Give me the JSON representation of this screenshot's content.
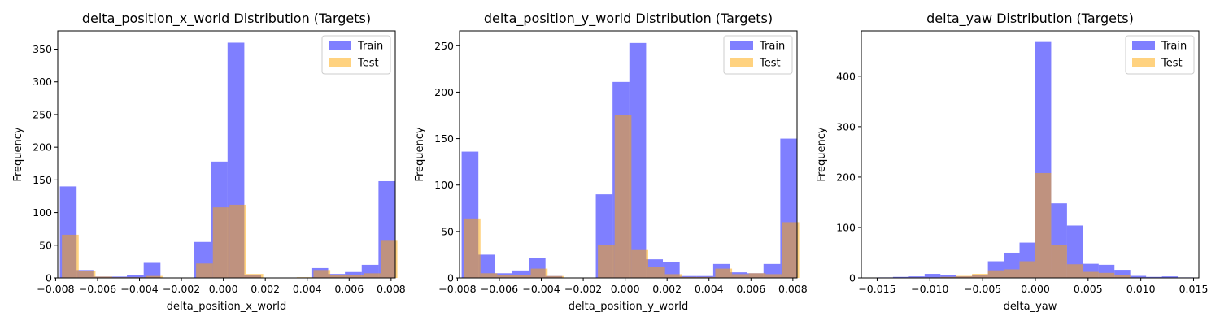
{
  "chart_data": [
    {
      "type": "bar",
      "title": "delta_position_x_world Distribution (Targets)",
      "xlabel": "delta_position_x_world",
      "ylabel": "Frequency",
      "xlim": [
        -0.0079,
        0.0082
      ],
      "ylim": [
        0,
        378
      ],
      "xticks": [
        -0.008,
        -0.006,
        -0.004,
        -0.002,
        0.0,
        0.002,
        0.004,
        0.006,
        0.008
      ],
      "xtick_labels": [
        "−0.008",
        "−0.006",
        "−0.004",
        "−0.002",
        "0.000",
        "0.002",
        "0.004",
        "0.006",
        "0.008"
      ],
      "yticks": [
        0,
        50,
        100,
        150,
        200,
        250,
        300,
        350
      ],
      "yticks_labels": [
        "0",
        "50",
        "100",
        "150",
        "200",
        "250",
        "300",
        "350"
      ],
      "legend": "top-right",
      "grid": false,
      "series": [
        {
          "name": "Train",
          "color": "#0000ff",
          "alpha": 0.5,
          "bin_edges": [
            -0.0078,
            -0.007,
            -0.0062,
            -0.0054,
            -0.0046,
            -0.0038,
            -0.003,
            -0.0022,
            -0.0014,
            -0.0006,
            0.0002,
            0.001,
            0.0018,
            0.0026,
            0.0034,
            0.0042,
            0.005,
            0.0058,
            0.0066,
            0.0074
          ],
          "values": [
            140,
            12,
            2,
            2,
            4,
            23,
            0,
            0,
            55,
            178,
            360,
            5,
            0,
            0,
            0,
            15,
            6,
            9,
            20,
            148
          ]
        },
        {
          "name": "Test",
          "color": "#ffa500",
          "alpha": 0.5,
          "bin_edges": [
            -0.0077,
            -0.0069,
            -0.0061,
            -0.0053,
            -0.0045,
            -0.0037,
            -0.0029,
            -0.0021,
            -0.0013,
            -0.0005,
            0.0003,
            0.0011,
            0.0019,
            0.0027,
            0.0035,
            0.0043,
            0.0051,
            0.0059,
            0.0067,
            0.0075
          ],
          "values": [
            66,
            10,
            2,
            1,
            1,
            3,
            0,
            0,
            22,
            108,
            112,
            6,
            0,
            0,
            1,
            12,
            4,
            4,
            7,
            58
          ]
        }
      ]
    },
    {
      "type": "bar",
      "title": "delta_position_y_world Distribution (Targets)",
      "xlabel": "delta_position_y_world",
      "ylabel": "Frequency",
      "xlim": [
        -0.0079,
        0.0082
      ],
      "ylim": [
        0,
        266
      ],
      "xticks": [
        -0.008,
        -0.006,
        -0.004,
        -0.002,
        0.0,
        0.002,
        0.004,
        0.006,
        0.008
      ],
      "xtick_labels": [
        "−0.008",
        "−0.006",
        "−0.004",
        "−0.002",
        "0.000",
        "0.002",
        "0.004",
        "0.006",
        "0.008"
      ],
      "yticks": [
        0,
        50,
        100,
        150,
        200,
        250
      ],
      "yticks_labels": [
        "0",
        "50",
        "100",
        "150",
        "200",
        "250"
      ],
      "legend": "top-right",
      "grid": false,
      "series": [
        {
          "name": "Train",
          "color": "#0000ff",
          "alpha": 0.5,
          "bin_edges": [
            -0.0078,
            -0.007,
            -0.0062,
            -0.0054,
            -0.0046,
            -0.0038,
            -0.003,
            -0.0022,
            -0.0014,
            -0.0006,
            0.0002,
            0.001,
            0.0018,
            0.0026,
            0.0034,
            0.0042,
            0.005,
            0.0058,
            0.0066,
            0.0074
          ],
          "values": [
            136,
            25,
            5,
            8,
            21,
            2,
            0,
            0,
            90,
            211,
            253,
            20,
            17,
            2,
            2,
            15,
            6,
            5,
            15,
            150
          ]
        },
        {
          "name": "Test",
          "color": "#ffa500",
          "alpha": 0.5,
          "bin_edges": [
            -0.0077,
            -0.0069,
            -0.0061,
            -0.0053,
            -0.0045,
            -0.0037,
            -0.0029,
            -0.0021,
            -0.0013,
            -0.0005,
            0.0003,
            0.0011,
            0.0019,
            0.0027,
            0.0035,
            0.0043,
            0.0051,
            0.0059,
            0.0067,
            0.0075
          ],
          "values": [
            64,
            5,
            3,
            3,
            10,
            2,
            0,
            0,
            35,
            175,
            30,
            12,
            4,
            1,
            1,
            10,
            4,
            5,
            4,
            60
          ]
        }
      ]
    },
    {
      "type": "bar",
      "title": "delta_yaw Distribution (Targets)",
      "xlabel": "delta_yaw",
      "ylabel": "Frequency",
      "xlim": [
        -0.0165,
        0.0155
      ],
      "ylim": [
        0,
        490
      ],
      "xticks": [
        -0.015,
        -0.01,
        -0.005,
        0.0,
        0.005,
        0.01,
        0.015
      ],
      "xtick_labels": [
        "−0.015",
        "−0.010",
        "−0.005",
        "0.000",
        "0.005",
        "0.010",
        "0.015"
      ],
      "yticks": [
        0,
        100,
        200,
        300,
        400
      ],
      "yticks_labels": [
        "0",
        "100",
        "200",
        "300",
        "400"
      ],
      "legend": "top-right",
      "grid": false,
      "series": [
        {
          "name": "Train",
          "color": "#0000ff",
          "alpha": 0.5,
          "bin_edges": [
            -0.015,
            -0.0135,
            -0.012,
            -0.0105,
            -0.009,
            -0.0075,
            -0.006,
            -0.0045,
            -0.003,
            -0.0015,
            0.0,
            0.0015,
            0.003,
            0.0045,
            0.006,
            0.0075,
            0.009,
            0.0105,
            0.012,
            0.0135
          ],
          "values": [
            1,
            2,
            3,
            8,
            5,
            3,
            6,
            33,
            50,
            70,
            468,
            148,
            104,
            28,
            26,
            16,
            4,
            2,
            3,
            1
          ]
        },
        {
          "name": "Test",
          "color": "#ffa500",
          "alpha": 0.5,
          "bin_edges": [
            -0.0135,
            -0.012,
            -0.0105,
            -0.009,
            -0.0075,
            -0.006,
            -0.0045,
            -0.003,
            -0.0015,
            0.0,
            0.0015,
            0.003,
            0.0045,
            0.006,
            0.0075,
            0.009
          ],
          "values": [
            0,
            1,
            1,
            2,
            4,
            8,
            15,
            17,
            33,
            208,
            65,
            27,
            12,
            10,
            5,
            1
          ]
        }
      ]
    }
  ]
}
